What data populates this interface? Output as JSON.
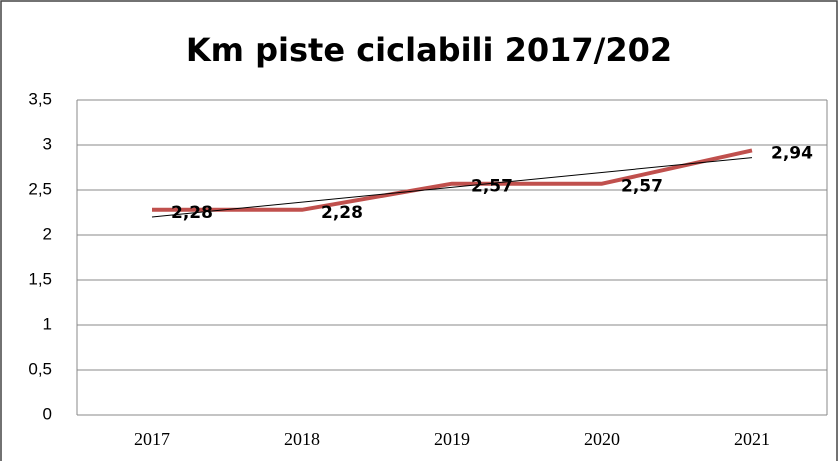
{
  "chart_data": {
    "type": "line",
    "title": "Km piste ciclabili 2017/202",
    "categories": [
      "2017",
      "2018",
      "2019",
      "2020",
      "2021"
    ],
    "values": [
      2.28,
      2.28,
      2.57,
      2.57,
      2.94
    ],
    "value_labels": [
      "2,28",
      "2,28",
      "2,57",
      "2,57",
      "2,94"
    ],
    "color": "#c0504d",
    "trendline": {
      "color": "#000000",
      "values": [
        2.2,
        2.86
      ]
    },
    "ylim": [
      0,
      3.5
    ],
    "yticks": [
      0,
      {
        "value": 0.5,
        "label": "0,5"
      },
      1,
      {
        "value": 1.5,
        "label": "1,5"
      },
      2,
      {
        "value": 2.5,
        "label": "2,5"
      },
      3,
      {
        "value": 3.5,
        "label": "3,5"
      }
    ],
    "grid": true
  }
}
